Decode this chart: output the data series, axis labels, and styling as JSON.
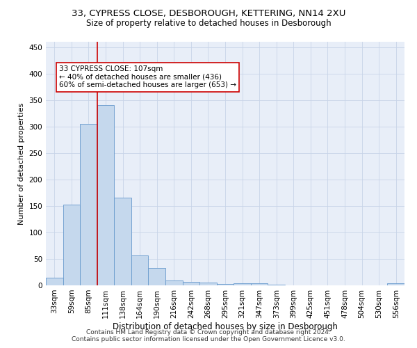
{
  "title_line1": "33, CYPRESS CLOSE, DESBOROUGH, KETTERING, NN14 2XU",
  "title_line2": "Size of property relative to detached houses in Desborough",
  "xlabel": "Distribution of detached houses by size in Desborough",
  "ylabel": "Number of detached properties",
  "categories": [
    "33sqm",
    "59sqm",
    "85sqm",
    "111sqm",
    "138sqm",
    "164sqm",
    "190sqm",
    "216sqm",
    "242sqm",
    "268sqm",
    "295sqm",
    "321sqm",
    "347sqm",
    "373sqm",
    "399sqm",
    "425sqm",
    "451sqm",
    "478sqm",
    "504sqm",
    "530sqm",
    "556sqm"
  ],
  "values": [
    15,
    153,
    305,
    340,
    165,
    57,
    33,
    9,
    7,
    5,
    2,
    4,
    4,
    1,
    0,
    0,
    0,
    0,
    0,
    0,
    4
  ],
  "bar_color": "#c5d8ed",
  "bar_edge_color": "#6699cc",
  "vline_color": "#cc0000",
  "vline_pos": 2.5,
  "annotation_text": "33 CYPRESS CLOSE: 107sqm\n← 40% of detached houses are smaller (436)\n60% of semi-detached houses are larger (653) →",
  "annotation_box_color": "#ffffff",
  "annotation_box_edge": "#cc0000",
  "annotation_fontsize": 7.5,
  "title_fontsize": 9.5,
  "subtitle_fontsize": 8.5,
  "xlabel_fontsize": 8.5,
  "ylabel_fontsize": 8.0,
  "tick_fontsize": 7.5,
  "yticks": [
    0,
    50,
    100,
    150,
    200,
    250,
    300,
    350,
    400,
    450
  ],
  "ylim": [
    0,
    460
  ],
  "grid_color": "#c8d4e8",
  "background_color": "#e8eef8",
  "footer_text": "Contains HM Land Registry data © Crown copyright and database right 2024.\nContains public sector information licensed under the Open Government Licence v3.0.",
  "footer_fontsize": 6.5
}
